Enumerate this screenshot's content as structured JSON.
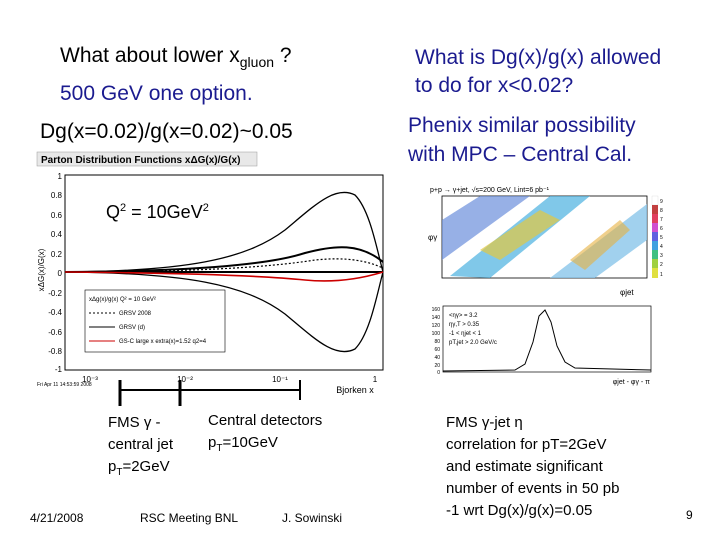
{
  "left": {
    "q1_prefix": "What about lower x",
    "q1_sub": "gluon",
    "q1_suffix": " ?",
    "q2": "500 GeV one option.",
    "q3": "Dg(x=0.02)/g(x=0.02)~0.05"
  },
  "right": {
    "line1": "What is Dg(x)/g(x) allowed",
    "line2": "to do for x<0.02?",
    "line3": "Phenix similar possibility",
    "line4": "with MPC – Central Cal."
  },
  "plot": {
    "title": "Parton Distribution Functions xΔG(x)/G(x)",
    "q2_label": "Q",
    "q2_sup1": "2",
    "q2_value": " = 10GeV",
    "q2_sup2": "2",
    "xlabel": "Bjorken x",
    "ylabel": "xΔG(x)/G(x)",
    "x_ticks": [
      "10⁻³",
      "10⁻²",
      "10⁻¹",
      "1"
    ],
    "y_ticks": [
      "1",
      "0.8",
      "0.6",
      "0.4",
      "0.2",
      "0",
      "-0.2",
      "-0.4",
      "-0.6",
      "-0.8",
      "-1"
    ],
    "legend": [
      "xΔg(x)/g(x) Q² = 10 GeV²",
      "GRSV 2008",
      "GRSV (d)",
      "GS-C large x extra(x)=1.52 q2=4"
    ],
    "stamp": "Fri Apr 11 14:53:59 2008"
  },
  "notes": {
    "fms1": "FMS γ",
    "fms2": "-",
    "central_jet": "central jet",
    "pt_a": "p",
    "pt_a_sub": "T",
    "pt_a_val": "=2GeV",
    "central_det": "Central detectors",
    "pt_b": "p",
    "pt_b_sub": "T",
    "pt_b_val": "=10GeV",
    "right_lines": [
      "FMS γ-jet η",
      "correlation for pT=2GeV",
      "and estimate significant",
      "number of events in 50 pb",
      "-1 wrt Dg(x)/g(x)=0.05"
    ]
  },
  "corr": {
    "title": "p+p → γ+jet, √s=200 GeV, Lint=6 pb⁻¹",
    "ylabel": "φγ",
    "xlabel": "φjet",
    "hist_xlabel": "φjet - φγ - π",
    "hist_box": [
      "<ηγ> = 3.2",
      "ηγ,T > 0.35",
      "-1 < ηjet < 1",
      "pT,jet > 2.0 GeV/c"
    ],
    "hist_ticks": [
      "160",
      "140",
      "120",
      "100",
      "80",
      "60",
      "40",
      "20",
      "0"
    ],
    "scale": [
      "9",
      "8",
      "7",
      "6",
      "5",
      "4",
      "3",
      "2",
      "1"
    ]
  },
  "footer": {
    "date": "4/21/2008",
    "meeting": "RSC Meeting BNL",
    "author": "J. Sowinski",
    "page": "9"
  },
  "colors": {
    "blue_text": "#1b1b8f",
    "curve_red": "#cc0000"
  }
}
